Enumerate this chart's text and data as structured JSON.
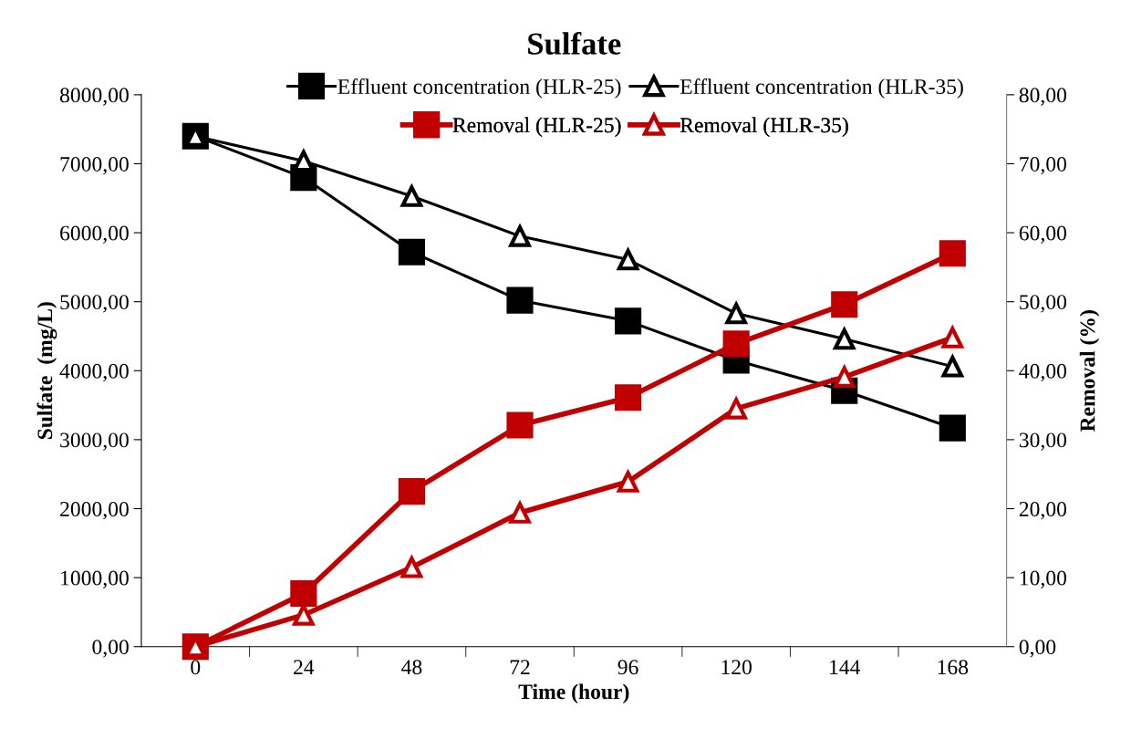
{
  "chart_data": {
    "type": "line",
    "title": "Sulfate",
    "xlabel": "Time (hour)",
    "ylabel": "Sulfate  (mg/L)",
    "y2label": "Removal (%)",
    "categories": [
      "0",
      "24",
      "48",
      "72",
      "96",
      "120",
      "144",
      "168"
    ],
    "series": [
      {
        "name": "Effluent concentration (HLR-25)",
        "color": "#000000",
        "marker": "square",
        "values": [
          7400,
          6800,
          5720,
          5020,
          4720,
          4150,
          3710,
          3170
        ]
      },
      {
        "name": "Effluent concentration (HLR-35)",
        "color": "#000000",
        "marker": "triangle",
        "values": [
          7400,
          7040,
          6530,
          5950,
          5610,
          4830,
          4460,
          4060
        ]
      },
      {
        "name": "Removal (HLR-25)",
        "color": "#c00000",
        "marker": "square",
        "axis": "y2",
        "values": [
          0,
          7.7,
          22.5,
          32.1,
          36.1,
          43.9,
          49.6,
          57.0
        ]
      },
      {
        "name": "Removal (HLR-35)",
        "color": "#c00000",
        "marker": "triangle",
        "axis": "y2",
        "values": [
          0,
          4.6,
          11.5,
          19.4,
          23.9,
          34.5,
          39.1,
          44.8
        ]
      }
    ],
    "ylim": [
      0,
      8000
    ],
    "yticks": [
      {
        "value": 0,
        "label": "0,00"
      },
      {
        "value": 1000,
        "label": "1000,00"
      },
      {
        "value": 2000,
        "label": "2000,00"
      },
      {
        "value": 3000,
        "label": "3000,00"
      },
      {
        "value": 4000,
        "label": "4000,00"
      },
      {
        "value": 5000,
        "label": "5000,00"
      },
      {
        "value": 6000,
        "label": "6000,00"
      },
      {
        "value": 7000,
        "label": "7000,00"
      },
      {
        "value": 8000,
        "label": "8000,00"
      }
    ],
    "y2lim": [
      0,
      80
    ],
    "y2ticks": [
      {
        "value": 0,
        "label": "0,00"
      },
      {
        "value": 10,
        "label": "10,00"
      },
      {
        "value": 20,
        "label": "20,00"
      },
      {
        "value": 30,
        "label": "30,00"
      },
      {
        "value": 40,
        "label": "40,00"
      },
      {
        "value": 50,
        "label": "50,00"
      },
      {
        "value": 60,
        "label": "60,00"
      },
      {
        "value": 70,
        "label": "70,00"
      },
      {
        "value": 80,
        "label": "80,00"
      }
    ],
    "grid": false,
    "legend": "top",
    "line_style": "solid"
  }
}
